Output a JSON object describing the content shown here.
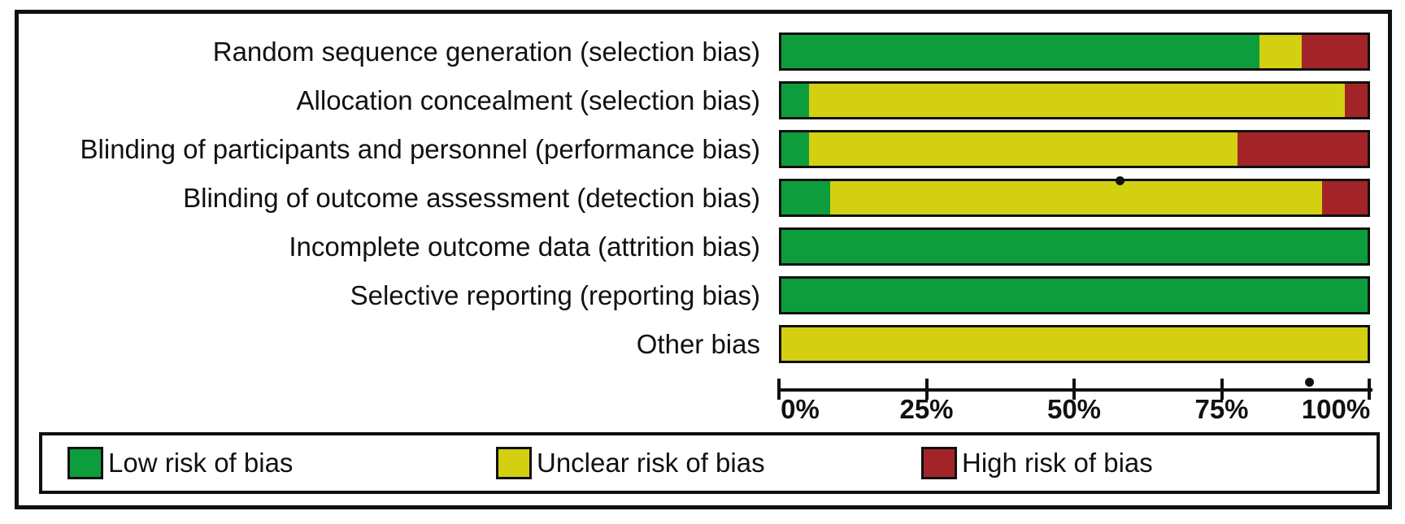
{
  "chart_data": {
    "type": "bar",
    "variant": "horizontal-stacked-percentage",
    "categories": [
      "Random sequence generation (selection bias)",
      "Allocation concealment (selection bias)",
      "Blinding of participants and personnel (performance bias)",
      "Blinding of outcome assessment (detection bias)",
      "Incomplete outcome data (attrition bias)",
      "Selective reporting (reporting bias)",
      "Other bias"
    ],
    "series": [
      {
        "name": "Low risk of bias",
        "color": "#0d9d3d",
        "values": [
          81.5,
          4.7,
          4.7,
          8.3,
          100,
          100,
          0
        ]
      },
      {
        "name": "Unclear risk of bias",
        "color": "#d2d011",
        "values": [
          7.3,
          91.4,
          73.1,
          83.9,
          0,
          0,
          100
        ]
      },
      {
        "name": "High risk of bias",
        "color": "#a32428",
        "values": [
          11.2,
          3.9,
          22.2,
          7.8,
          0,
          0,
          0
        ]
      }
    ],
    "x_ticks": [
      "0%",
      "25%",
      "50%",
      "75%",
      "100%"
    ],
    "xlim": [
      0,
      100
    ],
    "xlabel": "",
    "ylabel": "",
    "grid": false,
    "legend_position": "bottom"
  },
  "legend": {
    "items": [
      {
        "label": "Low risk of bias",
        "color": "#0d9d3d"
      },
      {
        "label": "Unclear risk of bias",
        "color": "#d2d011"
      },
      {
        "label": "High risk of bias",
        "color": "#a32428"
      }
    ]
  },
  "colors": {
    "low": "#0d9d3d",
    "unclear": "#d2d011",
    "high": "#a32428",
    "line": "#101010",
    "background": "#ffffff"
  }
}
